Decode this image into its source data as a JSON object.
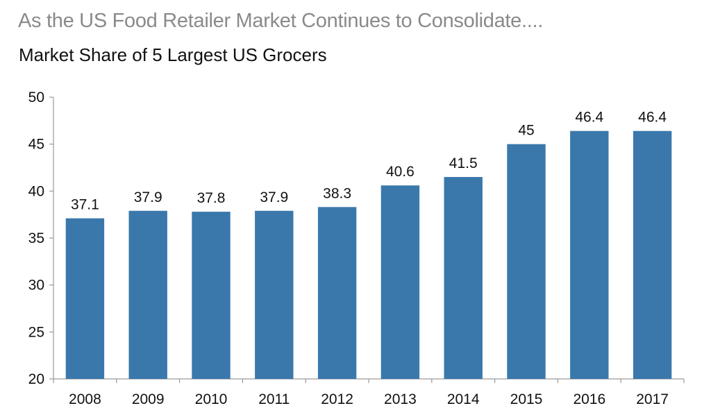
{
  "header": {
    "headline": "As the US Food Retailer Market Continues to Consolidate....",
    "subtitle": "Market Share of 5 Largest US Grocers"
  },
  "chart_data": {
    "type": "bar",
    "title": "Market Share of 5 Largest US Grocers",
    "xlabel": "",
    "ylabel": "",
    "categories": [
      "2008",
      "2009",
      "2010",
      "2011",
      "2012",
      "2013",
      "2014",
      "2015",
      "2016",
      "2017"
    ],
    "values": [
      37.1,
      37.9,
      37.8,
      37.9,
      38.3,
      40.6,
      41.5,
      45,
      46.4,
      46.4
    ],
    "data_labels": [
      "37.1",
      "37.9",
      "37.8",
      "37.9",
      "38.3",
      "40.6",
      "41.5",
      "45",
      "46.4",
      "46.4"
    ],
    "ylim": [
      20,
      50
    ],
    "yticks": [
      20,
      25,
      30,
      35,
      40,
      45,
      50
    ],
    "grid": false,
    "legend": "none",
    "colors": {
      "bar": "#3a78ab",
      "axis": "#9a9a9a",
      "text": "#111111"
    }
  }
}
